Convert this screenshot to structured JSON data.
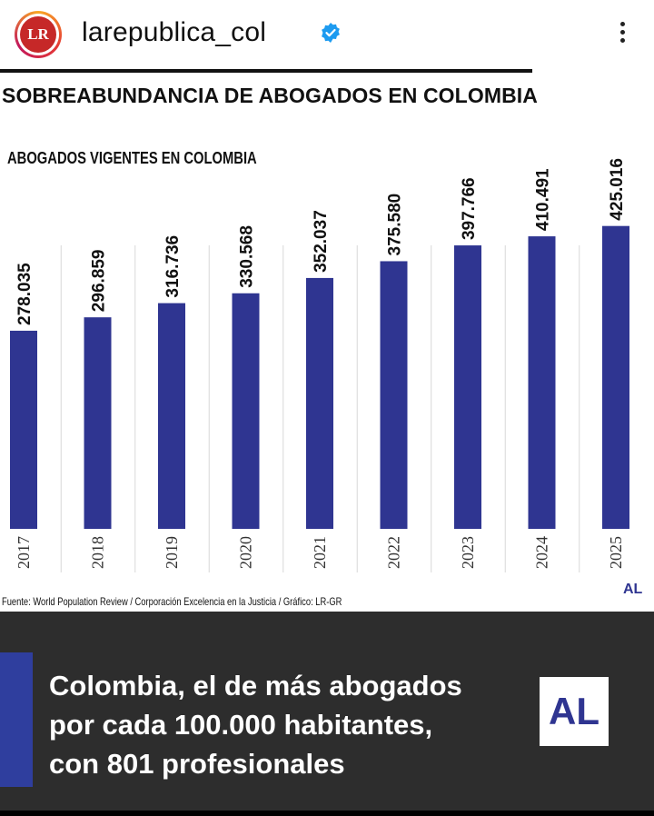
{
  "header": {
    "avatar_text": "LR",
    "username": "larepublica_col",
    "verified_icon": "verified-badge-icon",
    "more_icon": "more-vertical-icon"
  },
  "infographic": {
    "title": "SOBREABUNDANCIA DE ABOGADOS EN COLOMBIA",
    "subtitle": "ABOGADOS VIGENTES EN COLOMBIA",
    "source": "Fuente: World Population Review / Corporación Excelencia en la Justicia / Gráfico: LR-GR",
    "logo_small": "AL"
  },
  "chart_data": {
    "type": "bar",
    "title": "ABOGADOS VIGENTES EN COLOMBIA",
    "categories": [
      "2017",
      "2018",
      "2019",
      "2020",
      "2021",
      "2022",
      "2023",
      "2024",
      "2025"
    ],
    "values": [
      278035,
      296859,
      316736,
      330568,
      352037,
      375580,
      397766,
      410491,
      425016
    ],
    "value_labels": [
      "278.035",
      "296.859",
      "316.736",
      "330.568",
      "352.037",
      "375.580",
      "397.766",
      "410.491",
      "425.016"
    ],
    "ylim": [
      0,
      450000
    ],
    "grid": "vertical separators",
    "color": "#2f3591"
  },
  "banner": {
    "lines": [
      "Colombia, el de más abogados",
      "por cada 100.000 habitantes,",
      "con 801 profesionales"
    ],
    "logo": "AL"
  },
  "colors": {
    "bar": "#2f3591",
    "banner_bg": "#2d2d2d",
    "accent": "#2f3e9e",
    "brand_red": "#c62828"
  }
}
